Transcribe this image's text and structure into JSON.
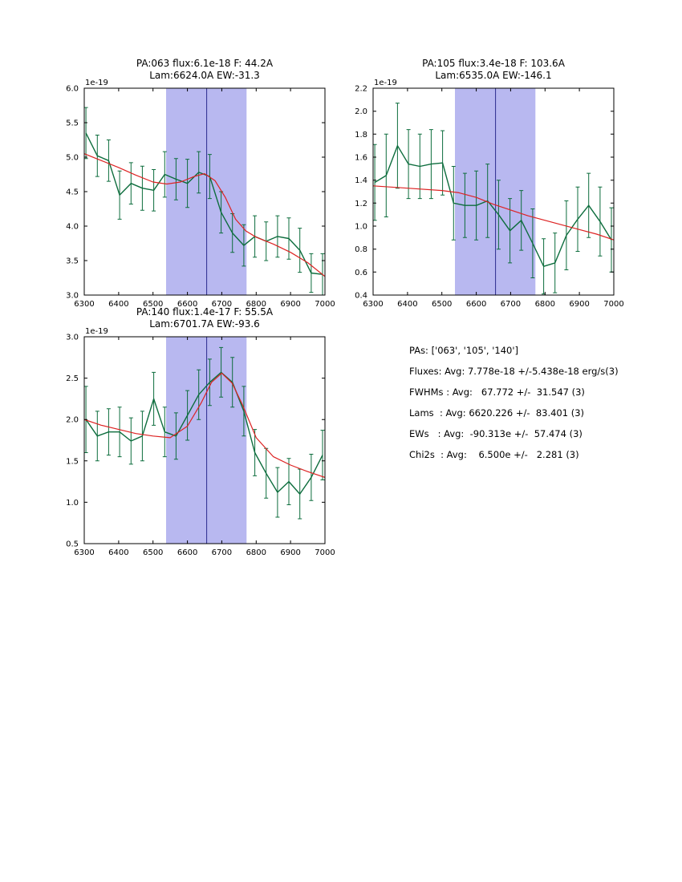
{
  "colors": {
    "data_line": "#0d6d3d",
    "fit_line": "#dd2222",
    "band_fill": "#b8b8f0",
    "marker_line": "#2a2a8f",
    "axis": "#000000",
    "background": "#ffffff"
  },
  "stats_panel": {
    "lines": [
      "PAs: ['063', '105', '140']",
      "Fluxes: Avg: 7.778e-18 +/-5.438e-18 erg/s(3)",
      "FWHMs : Avg:   67.772 +/-  31.547 (3)",
      "Lams  : Avg: 6620.226 +/-  83.401 (3)",
      "EWs   : Avg:  -90.313e +/-  57.474 (3)",
      "Chi2s  : Avg:    6.500e +/-   2.281 (3)"
    ]
  },
  "chart_data": [
    {
      "type": "line",
      "id": "pa063",
      "title_line1": "PA:063 flux:6.1e-18 F: 44.2A",
      "title_line2": "Lam:6624.0A EW:-31.3",
      "offset_label": "1e-19",
      "xlim": [
        6300,
        7000
      ],
      "ylim": [
        3.0,
        6.0
      ],
      "xticks": [
        6300,
        6400,
        6500,
        6600,
        6700,
        6800,
        6900,
        7000
      ],
      "yticks": [
        3.0,
        3.5,
        4.0,
        4.5,
        5.0,
        5.5,
        6.0
      ],
      "band": [
        6538,
        6772
      ],
      "vline": 6656,
      "grid": false,
      "series": [
        {
          "name": "spectrum",
          "x": [
            6305,
            6338,
            6371,
            6403,
            6436,
            6469,
            6502,
            6534,
            6567,
            6600,
            6633,
            6665,
            6698,
            6731,
            6764,
            6796,
            6829,
            6862,
            6895,
            6927,
            6960,
            6993
          ],
          "y": [
            5.35,
            5.02,
            4.95,
            4.45,
            4.62,
            4.55,
            4.52,
            4.75,
            4.68,
            4.62,
            4.78,
            4.72,
            4.2,
            3.9,
            3.72,
            3.85,
            3.78,
            3.85,
            3.82,
            3.65,
            3.32,
            3.3
          ],
          "yerr": [
            0.37,
            0.3,
            0.3,
            0.35,
            0.3,
            0.32,
            0.3,
            0.33,
            0.3,
            0.35,
            0.3,
            0.32,
            0.3,
            0.28,
            0.3,
            0.3,
            0.28,
            0.3,
            0.3,
            0.32,
            0.28,
            0.3
          ]
        },
        {
          "name": "fit",
          "x": [
            6300,
            6350,
            6400,
            6450,
            6500,
            6540,
            6580,
            6620,
            6650,
            6680,
            6710,
            6740,
            6770,
            6800,
            6850,
            6900,
            6950,
            7000
          ],
          "y": [
            5.05,
            4.95,
            4.85,
            4.74,
            4.64,
            4.61,
            4.64,
            4.72,
            4.76,
            4.66,
            4.42,
            4.1,
            3.93,
            3.84,
            3.74,
            3.62,
            3.47,
            3.27
          ]
        }
      ]
    },
    {
      "type": "line",
      "id": "pa105",
      "title_line1": "PA:105 flux:3.4e-18 F: 103.6A",
      "title_line2": "Lam:6535.0A EW:-146.1",
      "offset_label": "1e-19",
      "xlim": [
        6300,
        7000
      ],
      "ylim": [
        0.4,
        2.2
      ],
      "xticks": [
        6300,
        6400,
        6500,
        6600,
        6700,
        6800,
        6900,
        7000
      ],
      "yticks": [
        0.4,
        0.6,
        0.8,
        1.0,
        1.2,
        1.4,
        1.6,
        1.8,
        2.0,
        2.2
      ],
      "band": [
        6538,
        6772
      ],
      "vline": 6656,
      "grid": false,
      "series": [
        {
          "name": "spectrum",
          "x": [
            6305,
            6338,
            6371,
            6403,
            6436,
            6469,
            6502,
            6534,
            6567,
            6600,
            6633,
            6665,
            6698,
            6731,
            6764,
            6796,
            6829,
            6862,
            6895,
            6927,
            6960,
            6993
          ],
          "y": [
            1.38,
            1.44,
            1.7,
            1.54,
            1.52,
            1.54,
            1.55,
            1.2,
            1.18,
            1.18,
            1.22,
            1.1,
            0.96,
            1.05,
            0.85,
            0.65,
            0.68,
            0.92,
            1.06,
            1.18,
            1.04,
            0.88
          ],
          "yerr": [
            0.33,
            0.36,
            0.37,
            0.3,
            0.28,
            0.3,
            0.28,
            0.32,
            0.28,
            0.3,
            0.32,
            0.3,
            0.28,
            0.26,
            0.3,
            0.24,
            0.26,
            0.3,
            0.28,
            0.28,
            0.3,
            0.28
          ]
        },
        {
          "name": "fit",
          "x": [
            6300,
            6400,
            6500,
            6550,
            6600,
            6650,
            6700,
            6750,
            6800,
            6850,
            6900,
            6950,
            7000
          ],
          "y": [
            1.35,
            1.33,
            1.31,
            1.29,
            1.25,
            1.19,
            1.14,
            1.09,
            1.05,
            1.01,
            0.97,
            0.93,
            0.88
          ]
        }
      ]
    },
    {
      "type": "line",
      "id": "pa140",
      "title_line1": "PA:140 flux:1.4e-17 F: 55.5A",
      "title_line2": "Lam:6701.7A EW:-93.6",
      "offset_label": "1e-19",
      "xlim": [
        6300,
        7000
      ],
      "ylim": [
        0.5,
        3.0
      ],
      "xticks": [
        6300,
        6400,
        6500,
        6600,
        6700,
        6800,
        6900,
        7000
      ],
      "yticks": [
        0.5,
        1.0,
        1.5,
        2.0,
        2.5,
        3.0
      ],
      "band": [
        6538,
        6772
      ],
      "vline": 6656,
      "grid": false,
      "series": [
        {
          "name": "spectrum",
          "x": [
            6305,
            6338,
            6371,
            6403,
            6436,
            6469,
            6502,
            6534,
            6567,
            6600,
            6633,
            6665,
            6698,
            6731,
            6764,
            6796,
            6829,
            6862,
            6895,
            6927,
            6960,
            6993
          ],
          "y": [
            2.0,
            1.8,
            1.85,
            1.85,
            1.74,
            1.8,
            2.25,
            1.85,
            1.8,
            2.05,
            2.3,
            2.45,
            2.57,
            2.45,
            2.1,
            1.6,
            1.35,
            1.12,
            1.25,
            1.1,
            1.3,
            1.57
          ],
          "yerr": [
            0.4,
            0.3,
            0.28,
            0.3,
            0.28,
            0.3,
            0.32,
            0.3,
            0.28,
            0.3,
            0.3,
            0.28,
            0.3,
            0.3,
            0.3,
            0.28,
            0.3,
            0.3,
            0.28,
            0.3,
            0.28,
            0.3
          ]
        },
        {
          "name": "fit",
          "x": [
            6300,
            6350,
            6400,
            6450,
            6500,
            6550,
            6600,
            6640,
            6670,
            6700,
            6730,
            6760,
            6800,
            6850,
            6900,
            6950,
            7000
          ],
          "y": [
            2.0,
            1.93,
            1.88,
            1.83,
            1.8,
            1.78,
            1.92,
            2.2,
            2.45,
            2.56,
            2.44,
            2.18,
            1.78,
            1.55,
            1.45,
            1.37,
            1.3
          ]
        }
      ]
    }
  ]
}
